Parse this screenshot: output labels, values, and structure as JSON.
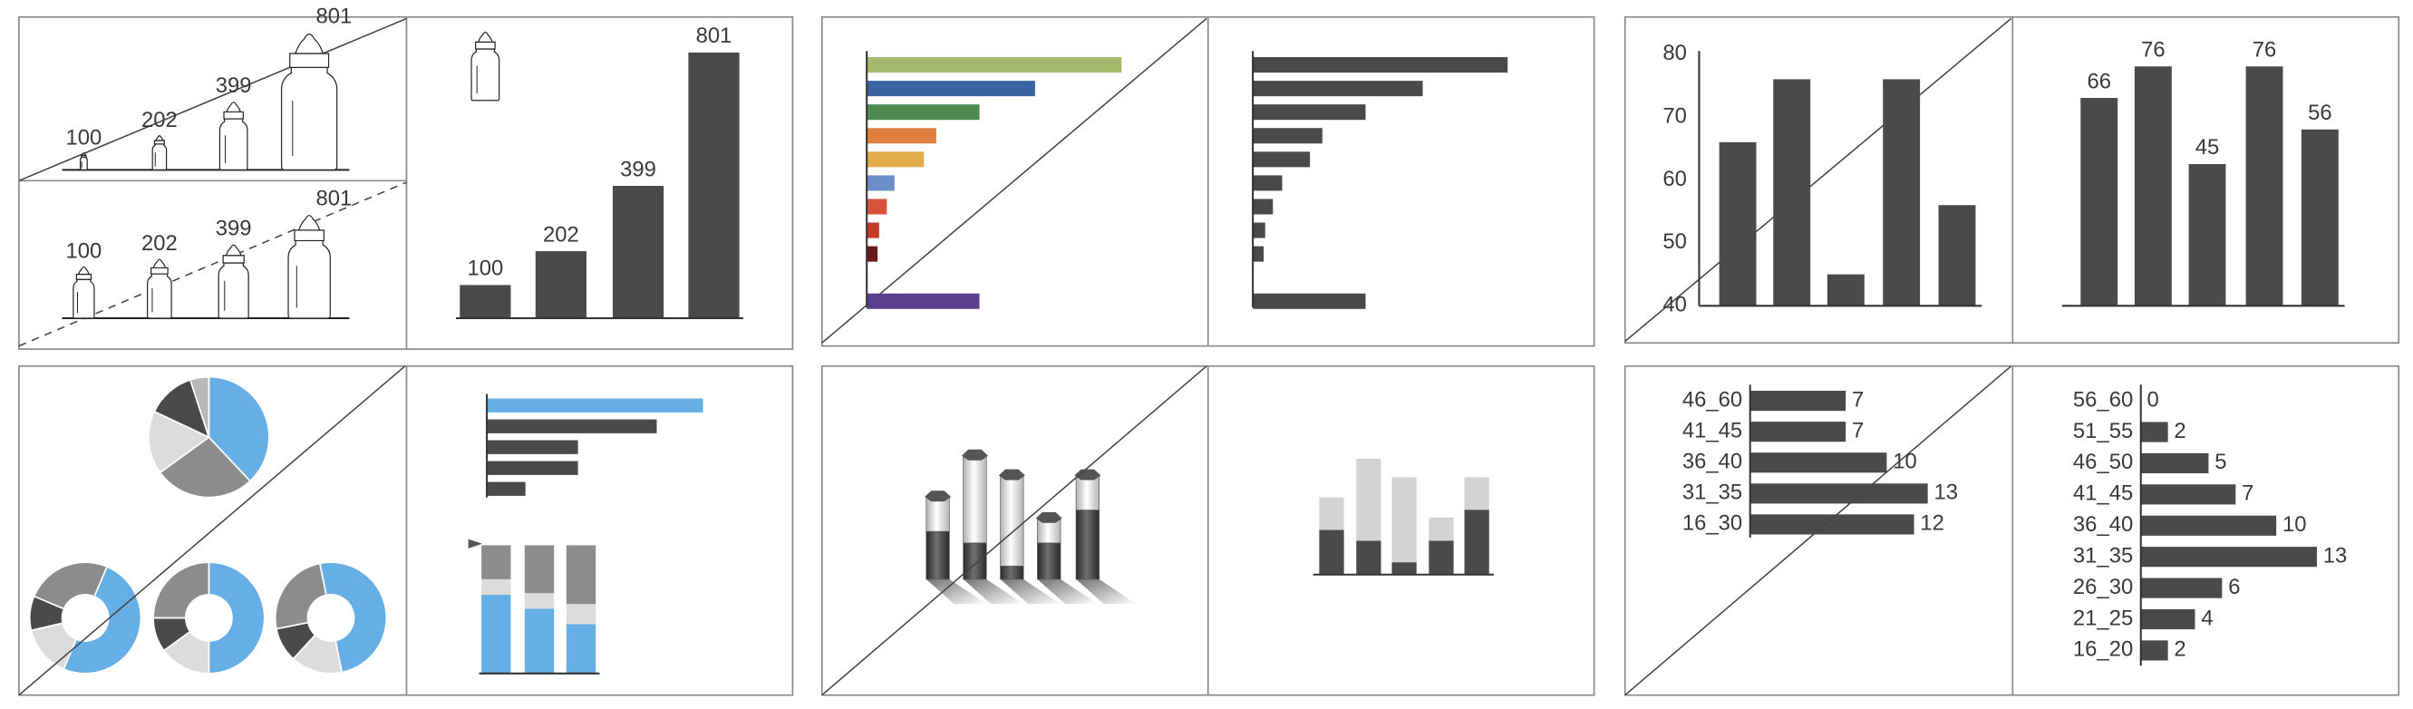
{
  "chart_data": [
    {
      "type": "pictogram",
      "values": [
        100,
        202,
        399,
        801
      ],
      "line": "solid"
    },
    {
      "type": "pictogram",
      "values": [
        100,
        202,
        399,
        801
      ],
      "line": "dashed"
    },
    {
      "type": "bar",
      "values": [
        100,
        202,
        399,
        801
      ],
      "color": "#4a4a4a",
      "data_labels": true
    },
    {
      "type": "hbar",
      "values": [
        165,
        109,
        73,
        45,
        37,
        18,
        13,
        8,
        7,
        null,
        73
      ],
      "colors": [
        "#a4b96b",
        "#3a64a0",
        "#4e8a4f",
        "#e07f3f",
        "#e3ac4a",
        "#6c8ec9",
        "#d9533b",
        "#c23b27",
        "#6b1b15",
        null,
        "#5a3f8e"
      ]
    },
    {
      "type": "hbar",
      "values": [
        165,
        110,
        73,
        45,
        37,
        19,
        13,
        8,
        7,
        null,
        73
      ],
      "color": "#4a4a4a"
    },
    {
      "type": "bar",
      "values": [
        66,
        76,
        45,
        76,
        56
      ],
      "color": "#4a4a4a",
      "ylim": [
        40,
        80
      ],
      "yticks": [
        40,
        50,
        60,
        70,
        80
      ]
    },
    {
      "type": "bar",
      "values": [
        66,
        76,
        45,
        76,
        56
      ],
      "color": "#4a4a4a",
      "data_labels": true
    },
    {
      "type": "pie",
      "values": [
        38,
        27,
        17,
        13,
        5
      ],
      "colors": [
        "#65aee6",
        "#8c8c8c",
        "#dcdcdc",
        "#4a4a4a",
        "#b8b8b8"
      ]
    },
    {
      "type": "donut",
      "values": [
        50,
        15,
        10,
        25
      ],
      "colors": [
        "#65aee6",
        "#dcdcdc",
        "#4a4a4a",
        "#8c8c8c"
      ]
    },
    {
      "type": "hbar",
      "values": [
        140,
        110,
        59,
        59,
        25
      ],
      "colors": [
        "#65aee6",
        "#4a4a4a",
        "#4a4a4a",
        "#4a4a4a",
        "#4a4a4a"
      ]
    },
    {
      "type": "stacked",
      "series": [
        {
          "color": "#65aee6",
          "values": [
            51,
            42,
            32
          ]
        },
        {
          "color": "#dcdcdc",
          "values": [
            10,
            10,
            13
          ]
        },
        {
          "color": "#8c8c8c",
          "values": [
            22,
            31,
            38
          ]
        }
      ]
    },
    {
      "type": "cylinder",
      "series": [
        {
          "color": "dark",
          "values": [
            29,
            22,
            8,
            22,
            42
          ]
        },
        {
          "color": "light",
          "values": [
            21,
            53,
            55,
            15,
            21
          ]
        }
      ]
    },
    {
      "type": "stacked",
      "series": [
        {
          "color": "#4a4a4a",
          "values": [
            29,
            22,
            8,
            22,
            42
          ]
        },
        {
          "color": "#d3d3d3",
          "values": [
            21,
            53,
            55,
            15,
            21
          ]
        }
      ]
    },
    {
      "type": "hbar",
      "categories": [
        "46_60",
        "41_45",
        "36_40",
        "31_35",
        "16_30"
      ],
      "values": [
        7,
        7,
        10,
        13,
        12
      ],
      "color": "#4a4a4a",
      "data_labels": true
    },
    {
      "type": "hbar",
      "categories": [
        "56_60",
        "51_55",
        "46_50",
        "41_45",
        "36_40",
        "31_35",
        "26_30",
        "21_25",
        "16_20"
      ],
      "values": [
        0,
        2,
        5,
        7,
        10,
        13,
        6,
        4,
        2
      ],
      "color": "#4a4a4a",
      "data_labels": true
    }
  ]
}
